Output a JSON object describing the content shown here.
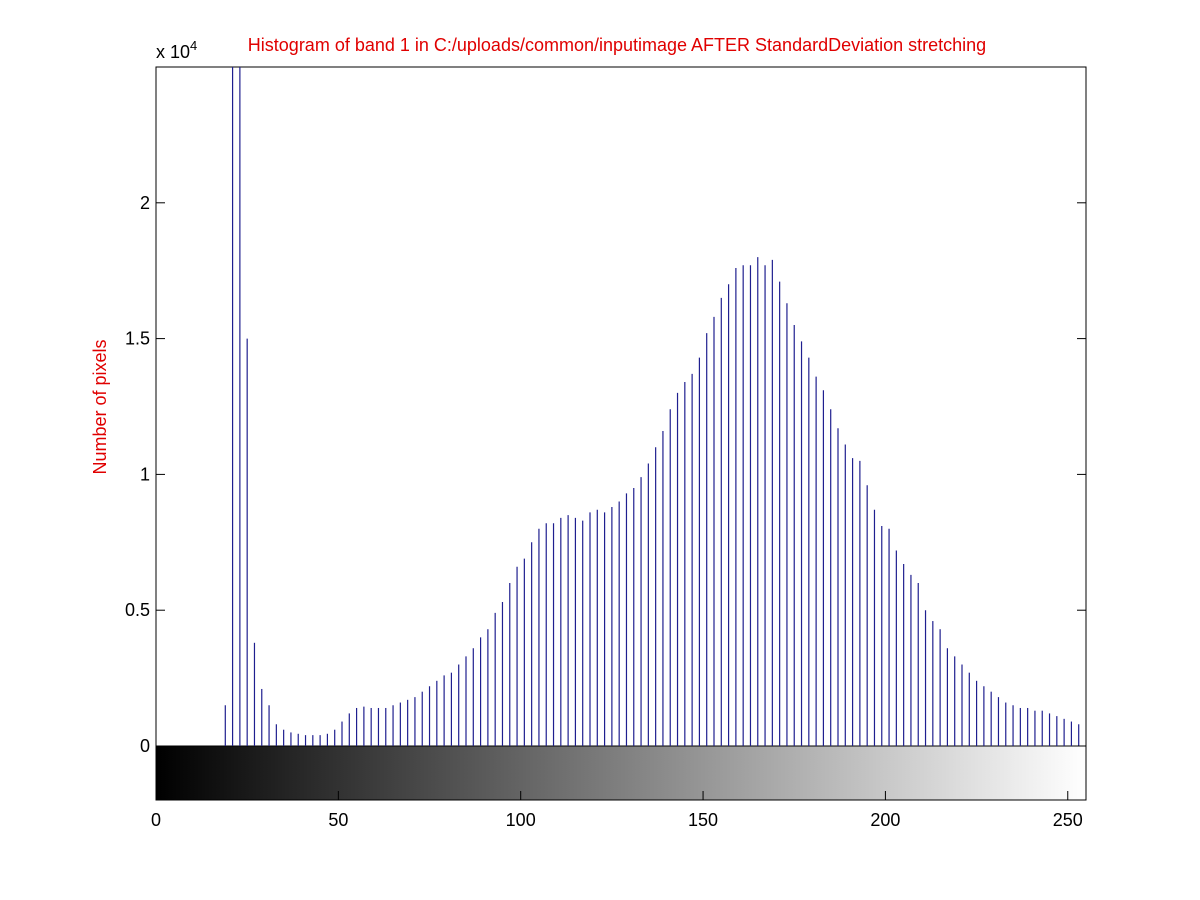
{
  "chart_data": {
    "type": "stem",
    "title": "Histogram of band 1 in C:/uploads/common/inputimage AFTER StandardDeviation stretching",
    "y_label": "Number of pixels",
    "y_multiplier": {
      "base": "x 10",
      "exponent": "4"
    },
    "color": "#1f1f8f",
    "x": [
      19,
      21,
      23,
      25,
      27,
      29,
      31,
      33,
      35,
      37,
      39,
      41,
      43,
      45,
      47,
      49,
      51,
      53,
      55,
      57,
      59,
      61,
      63,
      65,
      67,
      69,
      71,
      73,
      75,
      77,
      79,
      81,
      83,
      85,
      87,
      89,
      91,
      93,
      95,
      97,
      99,
      101,
      103,
      105,
      107,
      109,
      111,
      113,
      115,
      117,
      119,
      121,
      123,
      125,
      127,
      129,
      131,
      133,
      135,
      137,
      139,
      141,
      143,
      145,
      147,
      149,
      151,
      153,
      155,
      157,
      159,
      161,
      163,
      165,
      167,
      169,
      171,
      173,
      175,
      177,
      179,
      181,
      183,
      185,
      187,
      189,
      191,
      193,
      195,
      197,
      199,
      201,
      203,
      205,
      207,
      209,
      211,
      213,
      215,
      217,
      219,
      221,
      223,
      225,
      227,
      229,
      231,
      233,
      235,
      237,
      239,
      241,
      243,
      245,
      247,
      249,
      251,
      253
    ],
    "values": [
      0.15,
      2.8,
      2.6,
      1.5,
      0.38,
      0.21,
      0.15,
      0.08,
      0.06,
      0.05,
      0.045,
      0.04,
      0.04,
      0.04,
      0.045,
      0.06,
      0.09,
      0.12,
      0.14,
      0.145,
      0.14,
      0.14,
      0.14,
      0.15,
      0.16,
      0.17,
      0.18,
      0.2,
      0.22,
      0.24,
      0.26,
      0.27,
      0.3,
      0.33,
      0.36,
      0.4,
      0.43,
      0.49,
      0.53,
      0.6,
      0.66,
      0.69,
      0.75,
      0.8,
      0.82,
      0.82,
      0.84,
      0.85,
      0.84,
      0.83,
      0.86,
      0.87,
      0.86,
      0.88,
      0.9,
      0.93,
      0.95,
      0.99,
      1.04,
      1.1,
      1.16,
      1.24,
      1.3,
      1.34,
      1.37,
      1.43,
      1.52,
      1.58,
      1.65,
      1.7,
      1.76,
      1.77,
      1.77,
      1.8,
      1.77,
      1.79,
      1.71,
      1.63,
      1.55,
      1.49,
      1.43,
      1.36,
      1.31,
      1.24,
      1.17,
      1.11,
      1.06,
      1.05,
      0.96,
      0.87,
      0.81,
      0.8,
      0.72,
      0.67,
      0.63,
      0.6,
      0.5,
      0.46,
      0.43,
      0.36,
      0.33,
      0.3,
      0.27,
      0.24,
      0.22,
      0.2,
      0.18,
      0.16,
      0.15,
      0.14,
      0.14,
      0.13,
      0.13,
      0.12,
      0.11,
      0.1,
      0.09,
      0.08
    ],
    "xlim": [
      0,
      255
    ],
    "xticks": [
      0,
      50,
      100,
      150,
      200,
      250
    ],
    "ylim": [
      0,
      2.5
    ],
    "yticks": [
      0,
      0.5,
      1,
      1.5,
      2
    ]
  }
}
